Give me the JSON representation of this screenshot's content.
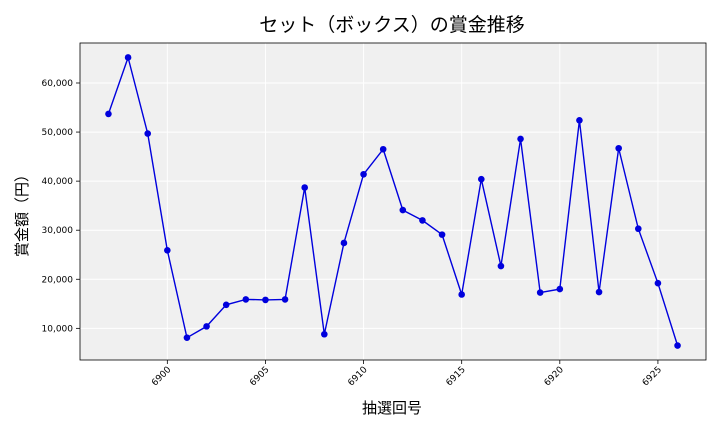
{
  "chart_data": {
    "type": "line",
    "title": "セット（ボックス）の賞金推移",
    "xlabel": "抽選回号",
    "ylabel": "賞金額（円）",
    "x": [
      6897,
      6898,
      6899,
      6900,
      6901,
      6902,
      6903,
      6904,
      6905,
      6906,
      6907,
      6908,
      6909,
      6910,
      6911,
      6912,
      6913,
      6914,
      6915,
      6916,
      6917,
      6918,
      6919,
      6920,
      6921,
      6922,
      6923,
      6924,
      6925,
      6926
    ],
    "series": [
      {
        "values": [
          53700,
          65200,
          49700,
          25900,
          8100,
          10400,
          14800,
          15900,
          15800,
          15900,
          38700,
          8800,
          27400,
          41400,
          46500,
          34100,
          32000,
          29100,
          16900,
          40400,
          22700,
          48600,
          17300,
          18000,
          52400,
          17400,
          46700,
          30300,
          19200,
          6500
        ],
        "color": "#0000dd"
      }
    ],
    "xticks": [
      "6900",
      "6905",
      "6910",
      "6915",
      "6920",
      "6925"
    ],
    "yticks": [
      "10,000",
      "20,000",
      "30,000",
      "40,000",
      "50,000",
      "60,000"
    ],
    "xlim": [
      6895.55,
      6927.45
    ],
    "ylim": [
      3550,
      68150
    ],
    "grid": true,
    "legend": "none",
    "plot_bg": "#f0f0f0"
  }
}
